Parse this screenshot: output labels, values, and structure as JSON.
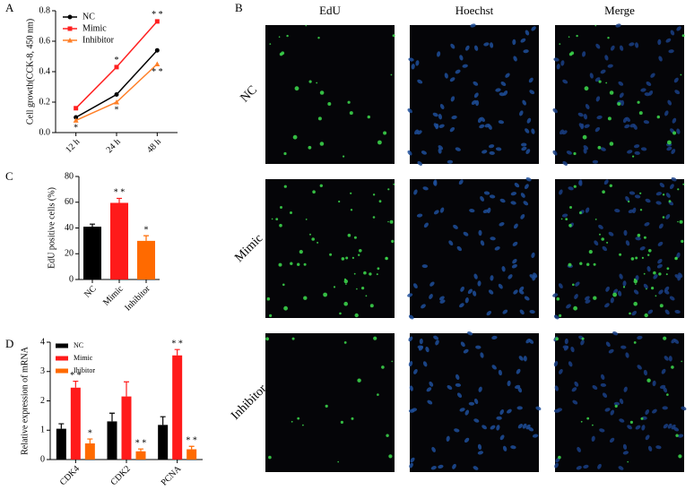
{
  "panel_labels": [
    "A",
    "B",
    "C",
    "D"
  ],
  "image_grid": {
    "columns": [
      "EdU",
      "Hoechst",
      "Merge"
    ],
    "rows": [
      "NC",
      "Mimic",
      "Inhibitor"
    ]
  },
  "chart_data": [
    {
      "type": "line",
      "y_label": "Cell growth(CCK-8, 450 nm)",
      "categories": [
        "12 h",
        "24 h",
        "48 h"
      ],
      "series": [
        {
          "name": "NC",
          "color": "#000000",
          "values": [
            0.1,
            0.25,
            0.54
          ],
          "significance": [
            null,
            null,
            null
          ]
        },
        {
          "name": "Mimic",
          "color": "#ff2020",
          "values": [
            0.16,
            0.43,
            0.73
          ],
          "significance": [
            null,
            "*",
            "* *"
          ]
        },
        {
          "name": "Inhibitor",
          "color": "#ff7f27",
          "values": [
            0.08,
            0.2,
            0.45
          ],
          "significance": [
            "*",
            "*",
            "* *"
          ]
        }
      ],
      "ylim": [
        0,
        0.8
      ],
      "yticks": [
        {
          "value": 0,
          "label": "0.0"
        },
        0.2,
        0.4,
        0.6,
        0.8
      ]
    },
    {
      "type": "bar",
      "y_label": "EdU positive cells (%)",
      "categories": [
        "NC",
        "Mimic",
        "Inhibitor"
      ],
      "values": [
        41,
        59.5,
        30
      ],
      "errors": [
        2,
        3.5,
        4
      ],
      "colors": [
        "#000000",
        "#ff1a1a",
        "#ff6a00"
      ],
      "significance": [
        null,
        "* *",
        "*"
      ],
      "ylim": [
        0,
        80
      ],
      "yticks": [
        0,
        20,
        40,
        60,
        80
      ]
    },
    {
      "type": "grouped_bar",
      "y_label": "Relative expression of  mRNA",
      "categories": [
        "CDK4",
        "CDK2",
        "PCNA"
      ],
      "series": [
        {
          "name": "NC",
          "color": "#000000",
          "values": [
            1.05,
            1.3,
            1.18
          ],
          "errors": [
            0.17,
            0.28,
            0.28
          ],
          "significance": [
            null,
            null,
            null
          ]
        },
        {
          "name": "Mimic",
          "color": "#ff1a1a",
          "values": [
            2.45,
            2.15,
            3.55
          ],
          "errors": [
            0.22,
            0.5,
            0.2
          ],
          "significance": [
            "* *",
            null,
            "* *"
          ]
        },
        {
          "name": "Ihibitor",
          "color": "#ff6a00",
          "values": [
            0.55,
            0.28,
            0.35
          ],
          "errors": [
            0.15,
            0.08,
            0.1
          ],
          "significance": [
            "*",
            "* *",
            "* *"
          ]
        }
      ],
      "ylim": [
        0,
        4
      ],
      "yticks": [
        0,
        1,
        2,
        3,
        4
      ]
    }
  ]
}
